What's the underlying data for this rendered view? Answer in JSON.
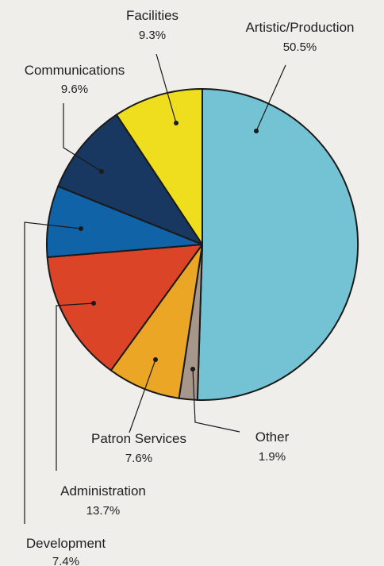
{
  "chart_data": {
    "type": "pie",
    "title": "",
    "start_angle_deg": 0,
    "direction": "clockwise",
    "slices": [
      {
        "label": "Artistic/Production",
        "value": 50.5,
        "display": "50.5%",
        "color": "#74c3d4"
      },
      {
        "label": "Other",
        "value": 1.9,
        "display": "1.9%",
        "color": "#a7968a"
      },
      {
        "label": "Patron Services",
        "value": 7.6,
        "display": "7.6%",
        "color": "#eaa624"
      },
      {
        "label": "Administration",
        "value": 13.7,
        "display": "13.7%",
        "color": "#dc4427"
      },
      {
        "label": "Development",
        "value": 7.4,
        "display": "7.4%",
        "color": "#1063a6"
      },
      {
        "label": "Communications",
        "value": 9.6,
        "display": "9.6%",
        "color": "#183862"
      },
      {
        "label": "Facilities",
        "value": 9.3,
        "display": "9.3%",
        "color": "#efde1e"
      }
    ]
  }
}
